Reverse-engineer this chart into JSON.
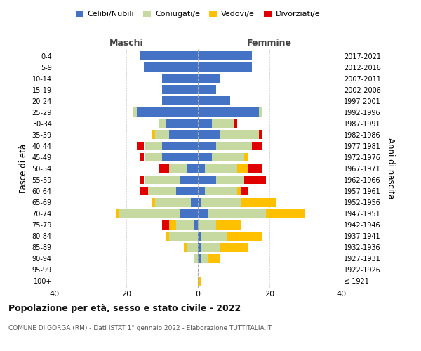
{
  "age_groups": [
    "100+",
    "95-99",
    "90-94",
    "85-89",
    "80-84",
    "75-79",
    "70-74",
    "65-69",
    "60-64",
    "55-59",
    "50-54",
    "45-49",
    "40-44",
    "35-39",
    "30-34",
    "25-29",
    "20-24",
    "15-19",
    "10-14",
    "5-9",
    "0-4"
  ],
  "birth_years": [
    "≤ 1921",
    "1922-1926",
    "1927-1931",
    "1932-1936",
    "1937-1941",
    "1942-1946",
    "1947-1951",
    "1952-1956",
    "1957-1961",
    "1962-1966",
    "1967-1971",
    "1972-1976",
    "1977-1981",
    "1982-1986",
    "1987-1991",
    "1992-1996",
    "1997-2001",
    "2002-2006",
    "2007-2011",
    "2012-2016",
    "2017-2021"
  ],
  "maschi": {
    "celibi": [
      0,
      0,
      0,
      0,
      0,
      1,
      5,
      2,
      6,
      5,
      3,
      10,
      10,
      8,
      9,
      17,
      10,
      10,
      10,
      15,
      16
    ],
    "coniugati": [
      0,
      0,
      1,
      3,
      8,
      5,
      17,
      10,
      8,
      10,
      5,
      5,
      5,
      4,
      2,
      1,
      0,
      0,
      0,
      0,
      0
    ],
    "vedovi": [
      0,
      0,
      0,
      1,
      1,
      2,
      1,
      1,
      0,
      0,
      0,
      0,
      0,
      1,
      0,
      0,
      0,
      0,
      0,
      0,
      0
    ],
    "divorziati": [
      0,
      0,
      0,
      0,
      0,
      2,
      0,
      0,
      2,
      1,
      3,
      1,
      2,
      0,
      0,
      0,
      0,
      0,
      0,
      0,
      0
    ]
  },
  "femmine": {
    "nubili": [
      0,
      0,
      1,
      1,
      1,
      0,
      3,
      1,
      2,
      5,
      2,
      4,
      5,
      6,
      4,
      17,
      9,
      5,
      6,
      15,
      15
    ],
    "coniugate": [
      0,
      0,
      2,
      5,
      7,
      5,
      16,
      11,
      9,
      8,
      9,
      9,
      10,
      11,
      6,
      1,
      0,
      0,
      0,
      0,
      0
    ],
    "vedove": [
      1,
      0,
      3,
      8,
      10,
      7,
      11,
      10,
      1,
      0,
      3,
      1,
      0,
      0,
      0,
      0,
      0,
      0,
      0,
      0,
      0
    ],
    "divorziate": [
      0,
      0,
      0,
      0,
      0,
      0,
      0,
      0,
      2,
      6,
      4,
      0,
      3,
      1,
      1,
      0,
      0,
      0,
      0,
      0,
      0
    ]
  },
  "colors": {
    "celibi": "#4472c4",
    "coniugati": "#c6d9a0",
    "vedovi": "#ffc000",
    "divorziati": "#e00000"
  },
  "xlim": 40,
  "title": "Popolazione per età, sesso e stato civile - 2022",
  "subtitle": "COMUNE DI GORGA (RM) - Dati ISTAT 1° gennaio 2022 - Elaborazione TUTTITALIA.IT",
  "ylabel_left": "Fasce di età",
  "ylabel_right": "Anni di nascita",
  "legend_labels": [
    "Celibi/Nubili",
    "Coniugati/e",
    "Vedovi/e",
    "Divorziati/e"
  ]
}
